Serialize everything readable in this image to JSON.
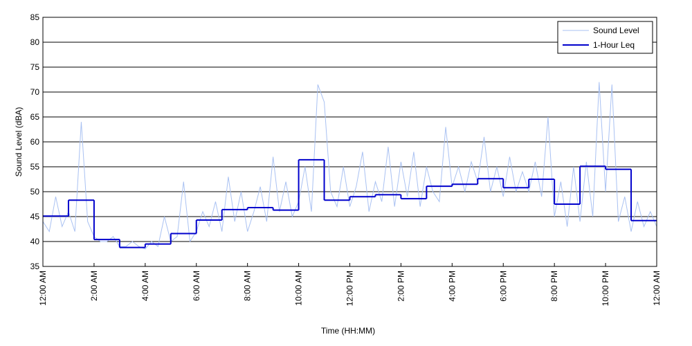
{
  "chart_data": {
    "type": "line",
    "xlabel": "Time (HH:MM)",
    "ylabel": "Sound Level (dBA)",
    "xlim": [
      0,
      24
    ],
    "xticks": [
      {
        "value": 0,
        "label": "12:00 AM"
      },
      {
        "value": 2,
        "label": "2:00 AM"
      },
      {
        "value": 4,
        "label": "4:00 AM"
      },
      {
        "value": 6,
        "label": "6:00 AM"
      },
      {
        "value": 8,
        "label": "8:00 AM"
      },
      {
        "value": 10,
        "label": "10:00 AM"
      },
      {
        "value": 12,
        "label": "12:00 PM"
      },
      {
        "value": 14,
        "label": "2:00 PM"
      },
      {
        "value": 16,
        "label": "4:00 PM"
      },
      {
        "value": 18,
        "label": "6:00 PM"
      },
      {
        "value": 20,
        "label": "8:00 PM"
      },
      {
        "value": 22,
        "label": "10:00 PM"
      },
      {
        "value": 24,
        "label": "12:00 AM"
      }
    ],
    "ylim": [
      35,
      85
    ],
    "yticks": [
      35,
      40,
      45,
      50,
      55,
      60,
      65,
      70,
      75,
      80,
      85
    ],
    "grid": true,
    "legend": "top-right",
    "series": [
      {
        "name": "Sound Level",
        "color": "#a9c1f2",
        "step": false,
        "x": [
          0,
          0.25,
          0.5,
          0.75,
          1,
          1.25,
          1.5,
          1.75,
          2,
          2.25,
          2.5,
          2.75,
          3,
          3.25,
          3.5,
          3.75,
          4,
          4.25,
          4.5,
          4.75,
          5,
          5.25,
          5.5,
          5.75,
          6,
          6.25,
          6.5,
          6.75,
          7,
          7.25,
          7.5,
          7.75,
          8,
          8.25,
          8.5,
          8.75,
          9,
          9.25,
          9.5,
          9.75,
          10,
          10.25,
          10.5,
          10.75,
          11,
          11.25,
          11.5,
          11.75,
          12,
          12.25,
          12.5,
          12.75,
          13,
          13.25,
          13.5,
          13.75,
          14,
          14.25,
          14.5,
          14.75,
          15,
          15.25,
          15.5,
          15.75,
          16,
          16.25,
          16.5,
          16.75,
          17,
          17.25,
          17.5,
          17.75,
          18,
          18.25,
          18.5,
          18.75,
          19,
          19.25,
          19.5,
          19.75,
          20,
          20.25,
          20.5,
          20.75,
          21,
          21.25,
          21.5,
          21.75,
          22,
          22.25,
          22.5,
          22.75,
          23,
          23.25,
          23.5,
          23.75,
          24
        ],
        "values": [
          44,
          42,
          49,
          43,
          46,
          42,
          64,
          44,
          41,
          40,
          40,
          41,
          39,
          39,
          40,
          39,
          38.5,
          40,
          39,
          45,
          40,
          41,
          52,
          40,
          42,
          46,
          43,
          48,
          42,
          53,
          44,
          50,
          42,
          46,
          51,
          44,
          57,
          46,
          52,
          45,
          48,
          55,
          46,
          71.5,
          68,
          50,
          47,
          55,
          47,
          51,
          58,
          46,
          52,
          48,
          59,
          47,
          56,
          49,
          58,
          47,
          55,
          50,
          48,
          63,
          51,
          55,
          50,
          56,
          52,
          61,
          50,
          55,
          49,
          57,
          50,
          54,
          50,
          56,
          49,
          65,
          45,
          52,
          43,
          55,
          44,
          56,
          45,
          72,
          50,
          71.5,
          44,
          49,
          42,
          48,
          43,
          46,
          43
        ]
      },
      {
        "name": "1-Hour Leq",
        "color": "#0000cc",
        "step": true,
        "x": [
          0,
          1,
          2,
          3,
          4,
          5,
          6,
          7,
          8,
          9,
          10,
          11,
          12,
          13,
          14,
          15,
          16,
          17,
          18,
          19,
          20,
          21,
          22,
          23
        ],
        "values": [
          45.1,
          48.3,
          40.4,
          38.8,
          39.5,
          41.6,
          44.3,
          46.4,
          46.8,
          46.3,
          56.4,
          48.3,
          49.0,
          49.4,
          48.6,
          51.1,
          51.5,
          52.6,
          50.8,
          52.5,
          47.5,
          55.1,
          54.5,
          44.2
        ]
      }
    ]
  }
}
